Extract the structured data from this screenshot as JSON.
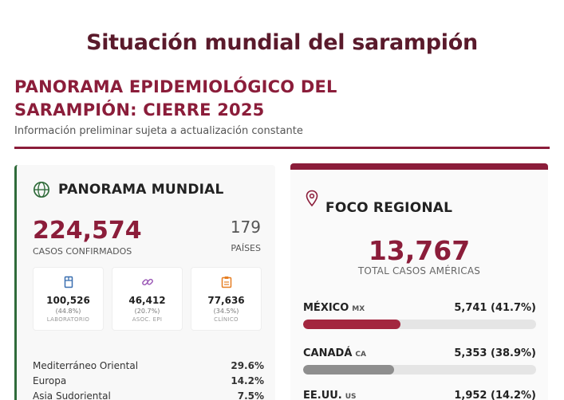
{
  "page": {
    "title": "Situación mundial del sarampión",
    "headline_1": "PANORAMA EPIDEMIOLÓGICO DEL",
    "headline_2": "SARAMPIÓN: CIERRE 2025",
    "subtitle": "Información preliminar sujeta a actualización constante"
  },
  "world": {
    "heading": "PANORAMA MUNDIAL",
    "icon": "globe-icon",
    "total_cases": "224,574",
    "total_caption": "CASOS CONFIRMADOS",
    "countries": "179",
    "countries_caption": "PAÍSES",
    "breakdown": [
      {
        "value": "100,526",
        "pct": "(44.8%)",
        "label": "LABORATORIO",
        "icon": "test-tube-icon",
        "color": "#3a6fb0"
      },
      {
        "value": "46,412",
        "pct": "(20.7%)",
        "label": "ASOC. EPI",
        "icon": "link-icon",
        "color": "#9b59b6"
      },
      {
        "value": "77,636",
        "pct": "(34.5%)",
        "label": "CLÍNICO",
        "icon": "clipboard-icon",
        "color": "#e67e22"
      }
    ],
    "regions": [
      {
        "name": "Mediterráneo Oriental",
        "pct": "29.6%"
      },
      {
        "name": "Europa",
        "pct": "14.2%"
      },
      {
        "name": "Asia Sudoriental",
        "pct": "7.5%"
      }
    ]
  },
  "regional": {
    "heading": "FOCO REGIONAL",
    "icon": "map-pin-icon",
    "total": "13,767",
    "total_caption": "TOTAL CASOS AMÉRICAS",
    "countries": [
      {
        "name": "MÉXICO",
        "code": "MX",
        "value": "5,741 (41.7%)",
        "fraction": 0.417,
        "color": "#a3263f"
      },
      {
        "name": "CANADÁ",
        "code": "CA",
        "value": "5,353 (38.9%)",
        "fraction": 0.389,
        "color": "#8e8e8e"
      },
      {
        "name": "EE.UU.",
        "code": "US",
        "value": "1,952 (14.2%)",
        "fraction": 0.142,
        "color": "#8e8e8e"
      }
    ]
  }
}
